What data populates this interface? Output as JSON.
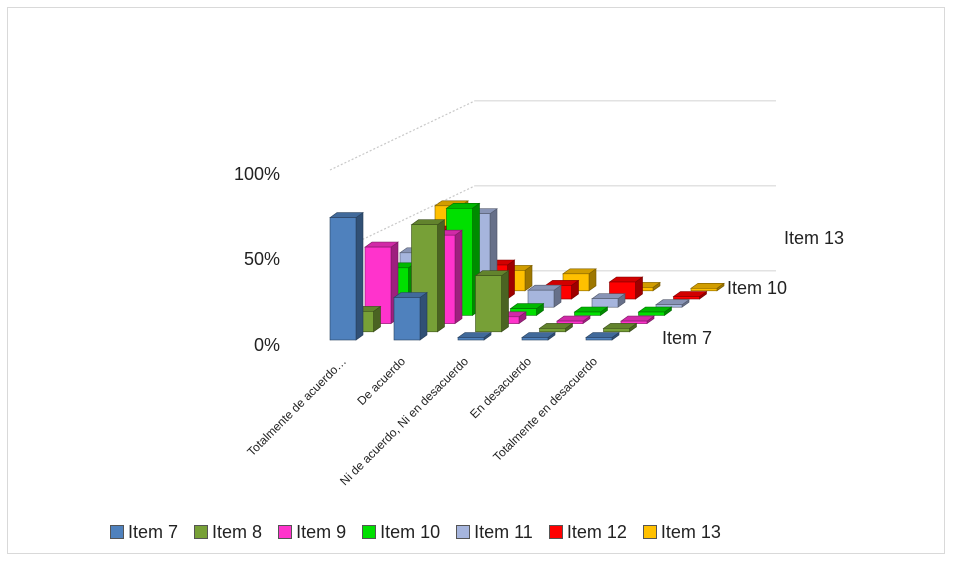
{
  "chart_data": {
    "type": "bar",
    "subtype": "3d-column",
    "categories": [
      "Totalmente de acuerdo…",
      "De acuerdo",
      "Ni de acuerdo,  Ni en desacuerdo",
      "En desacuerdo",
      "Totalmente en desacuerdo"
    ],
    "series": [
      {
        "name": "Item 7",
        "color": "#4f81bd",
        "values": [
          72,
          25,
          0,
          0,
          0
        ]
      },
      {
        "name": "Item 8",
        "color": "#77a037",
        "values": [
          12,
          63,
          33,
          2,
          2
        ]
      },
      {
        "name": "Item 9",
        "color": "#ff33cc",
        "values": [
          45,
          52,
          4,
          1,
          1
        ]
      },
      {
        "name": "Item 10",
        "color": "#00e000",
        "values": [
          28,
          63,
          4,
          2,
          2
        ]
      },
      {
        "name": "Item 11",
        "color": "#a6b5dd",
        "values": [
          32,
          55,
          10,
          5,
          1
        ]
      },
      {
        "name": "Item 12",
        "color": "#ff0000",
        "values": [
          40,
          20,
          8,
          10,
          1
        ]
      },
      {
        "name": "Item 13",
        "color": "#ffc000",
        "values": [
          50,
          12,
          10,
          2,
          1
        ]
      }
    ],
    "y_ticks": [
      "0%",
      "50%",
      "100%"
    ],
    "ylim": [
      0,
      100
    ],
    "depth_labels": [
      "Item 7",
      "Item 10",
      "Item 13"
    ],
    "legend_position": "bottom",
    "grid": true
  }
}
